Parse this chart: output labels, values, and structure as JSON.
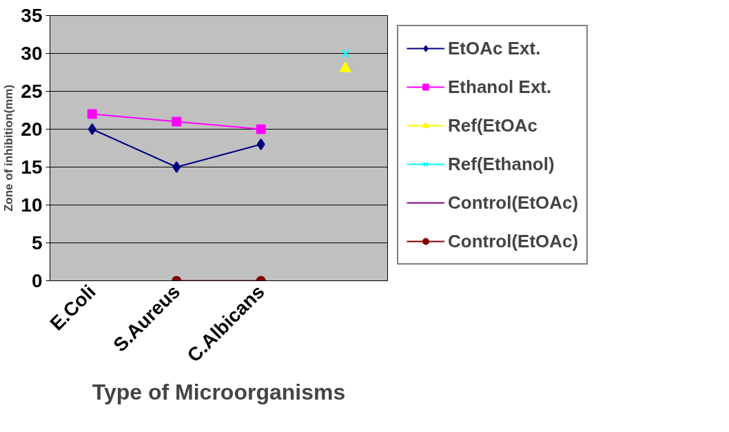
{
  "chart_data": {
    "type": "line",
    "xlabel": "Type of Microorganisms",
    "ylabel": "Zone of inhibition(mm)",
    "categories": [
      "E.Coli",
      "S.Aureus",
      "C.Albicans",
      null
    ],
    "ylim": [
      0,
      35
    ],
    "yticks": [
      0,
      5,
      10,
      15,
      20,
      25,
      30,
      35
    ],
    "grid": "y",
    "legend": "right",
    "series": [
      {
        "name": "EtOAc Ext.",
        "color": "#000080",
        "marker": "diamond",
        "values": [
          20,
          15,
          18,
          null
        ]
      },
      {
        "name": "Ethanol Ext.",
        "color": "#ff00ff",
        "marker": "square",
        "values": [
          22,
          21,
          20,
          null
        ]
      },
      {
        "name": "Ref(EtOAc",
        "color": "#ffff00",
        "marker": "triangle",
        "values": [
          null,
          null,
          null,
          28
        ]
      },
      {
        "name": "Ref(Ethanol)",
        "color": "#00ffff",
        "marker": "cross",
        "values": [
          null,
          null,
          null,
          30
        ]
      },
      {
        "name": "Control(EtOAc)",
        "color": "#800080",
        "marker": "star",
        "values": [
          null,
          null,
          null,
          null
        ]
      },
      {
        "name": "Control(EtOAc)",
        "color": "#800000",
        "marker": "circle",
        "values": [
          null,
          0,
          0,
          null
        ]
      }
    ]
  }
}
